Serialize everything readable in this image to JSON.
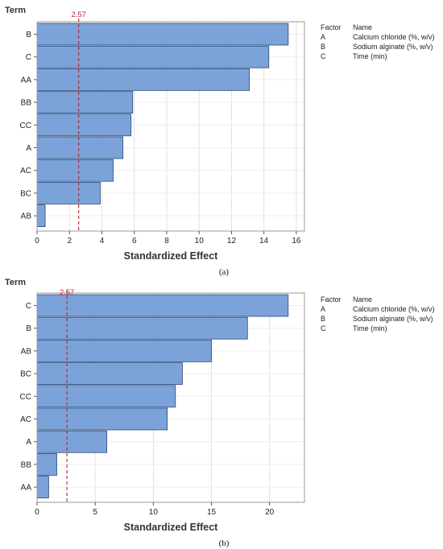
{
  "colors": {
    "bar_fill": "#7ba3d9",
    "bar_stroke": "#2f4a75",
    "reference_line": "#c0202a",
    "grid": "#e2e2e2",
    "frame": "#9a9a9a"
  },
  "legend": {
    "header_factor": "Factor",
    "header_name": "Name",
    "rows": [
      {
        "factor": "A",
        "name": "Calcium chloride (%, w/v)"
      },
      {
        "factor": "B",
        "name": "Sodium alginate (%, w/v)"
      },
      {
        "factor": "C",
        "name": "Time (min)"
      }
    ]
  },
  "chart_data": [
    {
      "type": "bar",
      "orientation": "horizontal",
      "ylabel": "Term",
      "xlabel": "Standardized Effect",
      "caption": "(a)",
      "categories": [
        "B",
        "C",
        "AA",
        "BB",
        "CC",
        "A",
        "AC",
        "BC",
        "AB"
      ],
      "values": [
        15.5,
        14.3,
        13.1,
        5.9,
        5.8,
        5.3,
        4.7,
        3.9,
        0.5
      ],
      "xlim": [
        0,
        16.5
      ],
      "xticks": [
        0,
        2,
        4,
        6,
        8,
        10,
        12,
        14,
        16
      ],
      "reference_line": {
        "value": 2.57,
        "label": "2.57"
      },
      "grid": true
    },
    {
      "type": "bar",
      "orientation": "horizontal",
      "ylabel": "Term",
      "xlabel": "Standardized Effect",
      "caption": "(b)",
      "categories": [
        "C",
        "B",
        "AB",
        "BC",
        "CC",
        "AC",
        "A",
        "BB",
        "AA"
      ],
      "values": [
        21.6,
        18.1,
        15.0,
        12.5,
        11.9,
        11.2,
        6.0,
        1.7,
        1.0
      ],
      "xlim": [
        0,
        23
      ],
      "xticks": [
        0,
        5,
        10,
        15,
        20
      ],
      "reference_line": {
        "value": 2.57,
        "label": "2.57"
      },
      "grid": true
    }
  ]
}
